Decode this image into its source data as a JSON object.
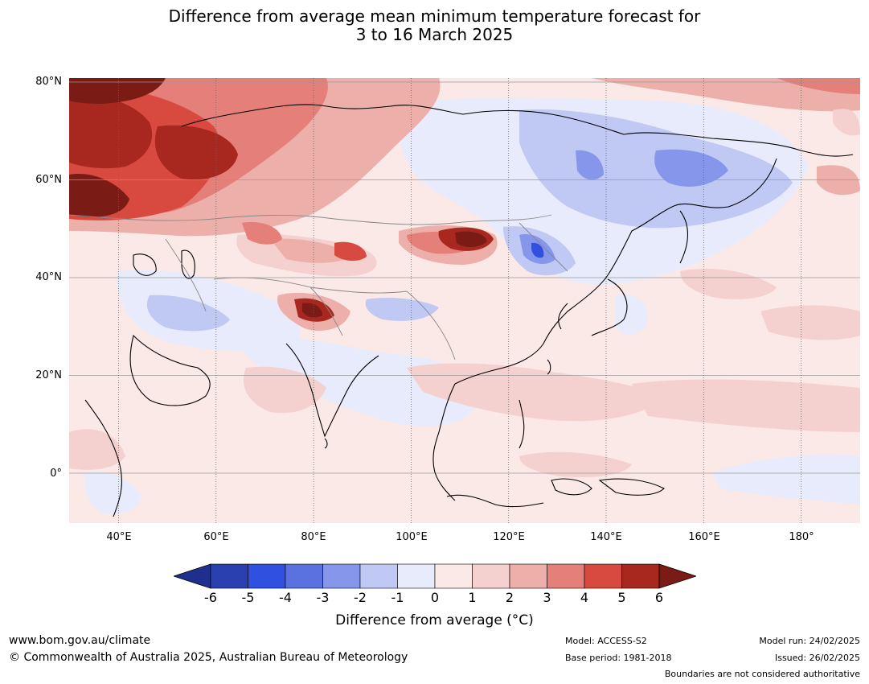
{
  "title_line1": "Difference from average mean minimum temperature forecast for",
  "title_line2": "3 to 16 March 2025",
  "lat_labels": [
    "80°N",
    "60°N",
    "40°N",
    "20°N",
    "0°"
  ],
  "lon_labels": [
    "40°E",
    "60°E",
    "80°E",
    "100°E",
    "120°E",
    "140°E",
    "160°E",
    "180°"
  ],
  "colorbar": {
    "ticks": [
      "-6",
      "-5",
      "-4",
      "-3",
      "-2",
      "-1",
      "0",
      "1",
      "2",
      "3",
      "4",
      "5",
      "6"
    ],
    "colors": [
      "#1f2f8e",
      "#2a3fb0",
      "#3050e0",
      "#5a72e0",
      "#8696ea",
      "#c0c8f4",
      "#e8ebfb",
      "#fbe9e7",
      "#f4d0ce",
      "#ecafaa",
      "#e48079",
      "#d84a40",
      "#a8281f",
      "#7a1c15"
    ],
    "label": "Difference from average (°C)"
  },
  "footer": {
    "url": "www.bom.gov.au/climate",
    "copyright": "© Commonwealth of Australia 2025, Australian Bureau of Meteorology",
    "model": "Model: ACCESS-S2",
    "base_period": "Base period: 1981-2018",
    "model_run": "Model run: 24/02/2025",
    "issued": "Issued: 26/02/2025",
    "disclaimer": "Boundaries are not considered authoritative"
  }
}
